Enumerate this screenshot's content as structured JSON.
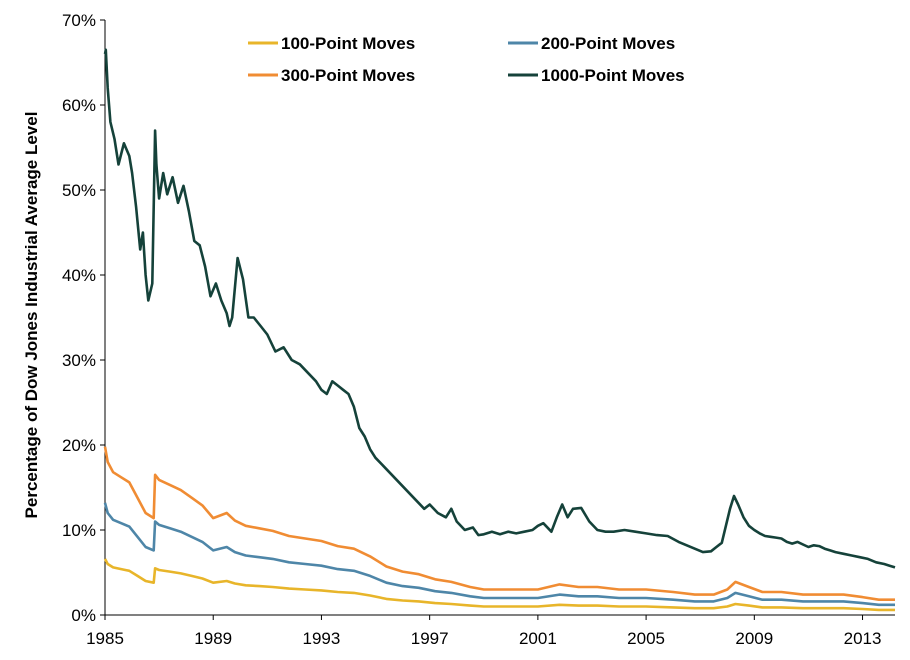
{
  "chart_data": {
    "type": "line",
    "title": "",
    "xlabel": "",
    "ylabel": "Percentage of Dow Jones Industrial Average Level",
    "xlim": [
      1985,
      2014.2
    ],
    "ylim": [
      0,
      70
    ],
    "x_ticks": [
      "1985",
      "1989",
      "1993",
      "1997",
      "2001",
      "2005",
      "2009",
      "2013"
    ],
    "x_tick_values": [
      1985,
      1989,
      1993,
      1997,
      2001,
      2005,
      2009,
      2013
    ],
    "y_ticks": [
      "0%",
      "10%",
      "20%",
      "30%",
      "40%",
      "50%",
      "60%",
      "70%"
    ],
    "y_tick_values": [
      0,
      10,
      20,
      30,
      40,
      50,
      60,
      70
    ],
    "grid": false,
    "legend_position": "top-center",
    "series": [
      {
        "name": "100-Point Moves",
        "color": "#E8B52A",
        "x": [
          1985.0,
          1985.1,
          1985.3,
          1985.6,
          1985.9,
          1986.2,
          1986.5,
          1986.8,
          1986.85,
          1987.0,
          1987.4,
          1987.8,
          1988.2,
          1988.6,
          1989.0,
          1989.5,
          1989.8,
          1990.2,
          1990.7,
          1991.2,
          1991.8,
          1992.4,
          1993.0,
          1993.6,
          1994.2,
          1994.8,
          1995.4,
          1996.0,
          1996.6,
          1997.2,
          1997.8,
          1998.5,
          1999.0,
          2000.0,
          2001.0,
          2001.8,
          2002.5,
          2003.2,
          2004.0,
          2005.0,
          2006.0,
          2006.8,
          2007.5,
          2008.0,
          2008.3,
          2008.8,
          2009.3,
          2010.0,
          2010.8,
          2011.5,
          2012.3,
          2013.0,
          2013.6,
          2014.2
        ],
        "values": [
          6.6,
          6.0,
          5.6,
          5.4,
          5.2,
          4.6,
          4.0,
          3.8,
          5.5,
          5.3,
          5.1,
          4.9,
          4.6,
          4.3,
          3.8,
          4.0,
          3.7,
          3.5,
          3.4,
          3.3,
          3.1,
          3.0,
          2.9,
          2.7,
          2.6,
          2.3,
          1.9,
          1.7,
          1.6,
          1.4,
          1.3,
          1.1,
          1.0,
          1.0,
          1.0,
          1.2,
          1.1,
          1.1,
          1.0,
          1.0,
          0.9,
          0.8,
          0.8,
          1.0,
          1.3,
          1.1,
          0.9,
          0.9,
          0.8,
          0.8,
          0.8,
          0.7,
          0.6,
          0.6
        ]
      },
      {
        "name": "200-Point Moves",
        "color": "#4E86A8",
        "x": [
          1985.0,
          1985.1,
          1985.3,
          1985.6,
          1985.9,
          1986.2,
          1986.5,
          1986.8,
          1986.85,
          1987.0,
          1987.4,
          1987.8,
          1988.2,
          1988.6,
          1989.0,
          1989.5,
          1989.8,
          1990.2,
          1990.7,
          1991.2,
          1991.8,
          1992.4,
          1993.0,
          1993.6,
          1994.2,
          1994.8,
          1995.4,
          1996.0,
          1996.6,
          1997.2,
          1997.8,
          1998.5,
          1999.0,
          2000.0,
          2001.0,
          2001.8,
          2002.5,
          2003.2,
          2004.0,
          2005.0,
          2006.0,
          2006.8,
          2007.5,
          2008.0,
          2008.3,
          2008.8,
          2009.3,
          2010.0,
          2010.8,
          2011.5,
          2012.3,
          2013.0,
          2013.6,
          2014.2
        ],
        "values": [
          13.2,
          12.0,
          11.2,
          10.8,
          10.4,
          9.2,
          8.0,
          7.6,
          11.0,
          10.6,
          10.2,
          9.8,
          9.2,
          8.6,
          7.6,
          8.0,
          7.4,
          7.0,
          6.8,
          6.6,
          6.2,
          6.0,
          5.8,
          5.4,
          5.2,
          4.6,
          3.8,
          3.4,
          3.2,
          2.8,
          2.6,
          2.2,
          2.0,
          2.0,
          2.0,
          2.4,
          2.2,
          2.2,
          2.0,
          2.0,
          1.8,
          1.6,
          1.6,
          2.0,
          2.6,
          2.2,
          1.8,
          1.8,
          1.6,
          1.6,
          1.6,
          1.4,
          1.2,
          1.2
        ]
      },
      {
        "name": "300-Point Moves",
        "color": "#F08C33",
        "x": [
          1985.0,
          1985.1,
          1985.3,
          1985.6,
          1985.9,
          1986.2,
          1986.5,
          1986.8,
          1986.85,
          1987.0,
          1987.4,
          1987.8,
          1988.2,
          1988.6,
          1989.0,
          1989.5,
          1989.8,
          1990.2,
          1990.7,
          1991.2,
          1991.8,
          1992.4,
          1993.0,
          1993.6,
          1994.2,
          1994.8,
          1995.4,
          1996.0,
          1996.6,
          1997.2,
          1997.8,
          1998.5,
          1999.0,
          2000.0,
          2001.0,
          2001.8,
          2002.5,
          2003.2,
          2004.0,
          2005.0,
          2006.0,
          2006.8,
          2007.5,
          2008.0,
          2008.3,
          2008.8,
          2009.3,
          2010.0,
          2010.8,
          2011.5,
          2012.3,
          2013.0,
          2013.6,
          2014.2
        ],
        "values": [
          19.8,
          18.0,
          16.8,
          16.2,
          15.6,
          13.8,
          12.0,
          11.4,
          16.5,
          15.9,
          15.3,
          14.7,
          13.8,
          12.9,
          11.4,
          12.0,
          11.1,
          10.5,
          10.2,
          9.9,
          9.3,
          9.0,
          8.7,
          8.1,
          7.8,
          6.9,
          5.7,
          5.1,
          4.8,
          4.2,
          3.9,
          3.3,
          3.0,
          3.0,
          3.0,
          3.6,
          3.3,
          3.3,
          3.0,
          3.0,
          2.7,
          2.4,
          2.4,
          3.0,
          3.9,
          3.3,
          2.7,
          2.7,
          2.4,
          2.4,
          2.4,
          2.1,
          1.8,
          1.8
        ]
      },
      {
        "name": "1000-Point Moves",
        "color": "#15423A",
        "x": [
          1985.0,
          1985.03,
          1985.1,
          1985.2,
          1985.35,
          1985.5,
          1985.7,
          1985.9,
          1986.0,
          1986.15,
          1986.3,
          1986.4,
          1986.5,
          1986.6,
          1986.75,
          1986.85,
          1986.9,
          1987.0,
          1987.15,
          1987.3,
          1987.5,
          1987.7,
          1987.9,
          1988.1,
          1988.3,
          1988.5,
          1988.7,
          1988.9,
          1989.1,
          1989.3,
          1989.5,
          1989.6,
          1989.7,
          1989.9,
          1990.1,
          1990.3,
          1990.5,
          1990.75,
          1991.0,
          1991.3,
          1991.6,
          1991.9,
          1992.2,
          1992.5,
          1992.8,
          1993.0,
          1993.2,
          1993.4,
          1993.6,
          1993.8,
          1994.0,
          1994.2,
          1994.4,
          1994.6,
          1994.8,
          1995.0,
          1995.3,
          1995.6,
          1995.9,
          1996.2,
          1996.5,
          1996.8,
          1997.0,
          1997.3,
          1997.6,
          1997.8,
          1998.0,
          1998.3,
          1998.6,
          1998.8,
          1999.0,
          1999.3,
          1999.6,
          1999.9,
          2000.2,
          2000.5,
          2000.8,
          2001.0,
          2001.2,
          2001.5,
          2001.7,
          2001.9,
          2002.1,
          2002.3,
          2002.6,
          2002.9,
          2003.2,
          2003.5,
          2003.8,
          2004.2,
          2004.6,
          2005.0,
          2005.4,
          2005.8,
          2006.2,
          2006.5,
          2006.8,
          2007.1,
          2007.4,
          2007.6,
          2007.8,
          2007.95,
          2008.1,
          2008.25,
          2008.4,
          2008.6,
          2008.8,
          2009.0,
          2009.2,
          2009.4,
          2009.6,
          2009.8,
          2010.0,
          2010.2,
          2010.4,
          2010.6,
          2010.8,
          2011.0,
          2011.2,
          2011.4,
          2011.6,
          2011.8,
          2012.0,
          2012.3,
          2012.6,
          2012.9,
          2013.2,
          2013.5,
          2013.8,
          2014.0,
          2014.2
        ],
        "values": [
          66.0,
          66.5,
          62.0,
          58.0,
          56.0,
          53.0,
          55.5,
          54.0,
          52.0,
          48.0,
          43.0,
          45.0,
          40.0,
          37.0,
          39.0,
          57.0,
          53.0,
          49.0,
          52.0,
          49.5,
          51.5,
          48.5,
          50.5,
          47.5,
          44.0,
          43.5,
          41.0,
          37.5,
          39.0,
          37.0,
          35.5,
          34.0,
          35.0,
          42.0,
          39.5,
          35.0,
          35.0,
          34.0,
          33.0,
          31.0,
          31.5,
          30.0,
          29.5,
          28.5,
          27.5,
          26.5,
          26.0,
          27.5,
          27.0,
          26.5,
          26.0,
          24.5,
          22.0,
          21.0,
          19.5,
          18.5,
          17.5,
          16.5,
          15.5,
          14.5,
          13.5,
          12.5,
          13.0,
          12.0,
          11.5,
          12.5,
          11.0,
          10.0,
          10.3,
          9.4,
          9.5,
          9.8,
          9.5,
          9.8,
          9.6,
          9.8,
          10.0,
          10.5,
          10.8,
          9.8,
          11.5,
          13.0,
          11.5,
          12.5,
          12.6,
          11.0,
          10.0,
          9.8,
          9.8,
          10.0,
          9.8,
          9.6,
          9.4,
          9.3,
          8.6,
          8.2,
          7.8,
          7.4,
          7.5,
          8.0,
          8.5,
          10.5,
          12.5,
          14.0,
          13.0,
          11.5,
          10.5,
          10.0,
          9.6,
          9.3,
          9.2,
          9.1,
          9.0,
          8.6,
          8.4,
          8.6,
          8.3,
          8.0,
          8.2,
          8.1,
          7.8,
          7.6,
          7.4,
          7.2,
          7.0,
          6.8,
          6.6,
          6.2,
          6.0,
          5.8,
          5.6
        ]
      }
    ]
  }
}
